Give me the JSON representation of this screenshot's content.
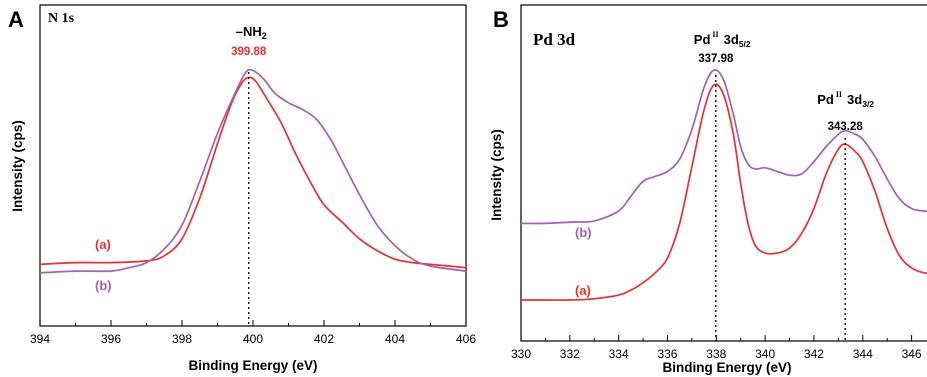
{
  "colors": {
    "series_a": "#e8302f",
    "series_b": "#a55fb4",
    "annotation_red": "#e8302f",
    "axis": "#000000"
  },
  "chart_data": [
    {
      "type": "line",
      "panel": "A",
      "core_level": "N 1s",
      "xlabel": "Binding Energy (eV)",
      "ylabel": "Intensity (cps)",
      "xlim": [
        394,
        406
      ],
      "ylim": [
        0,
        100
      ],
      "x_reversed": false,
      "xticks": [
        394,
        396,
        398,
        400,
        402,
        404,
        406
      ],
      "peak_annotation": {
        "species": "–NH",
        "subscript": "2",
        "value_text": "399.88",
        "x": 399.88
      },
      "series": [
        {
          "label": "(a)",
          "points": [
            [
              394,
              30.5
            ],
            [
              395,
              31
            ],
            [
              396,
              31
            ],
            [
              397,
              31.5
            ],
            [
              397.5,
              33
            ],
            [
              398,
              38
            ],
            [
              398.5,
              50
            ],
            [
              399,
              66
            ],
            [
              399.4,
              78
            ],
            [
              399.7,
              84
            ],
            [
              399.9,
              85.5
            ],
            [
              400.1,
              84
            ],
            [
              400.4,
              79
            ],
            [
              400.8,
              72
            ],
            [
              401.2,
              63
            ],
            [
              401.6,
              55
            ],
            [
              402,
              48
            ],
            [
              402.5,
              43
            ],
            [
              403,
              38
            ],
            [
              403.5,
              34.5
            ],
            [
              404,
              32
            ],
            [
              404.5,
              31
            ],
            [
              405,
              30.5
            ],
            [
              406,
              29.5
            ]
          ]
        },
        {
          "label": "(b)",
          "points": [
            [
              394,
              28
            ],
            [
              395,
              28.5
            ],
            [
              396,
              28.5
            ],
            [
              396.5,
              29.5
            ],
            [
              397,
              31
            ],
            [
              397.5,
              35
            ],
            [
              398,
              42
            ],
            [
              398.5,
              55
            ],
            [
              399,
              69
            ],
            [
              399.5,
              81
            ],
            [
              399.8,
              87
            ],
            [
              400,
              87.5
            ],
            [
              400.3,
              85
            ],
            [
              400.6,
              81
            ],
            [
              401,
              78
            ],
            [
              401.4,
              76
            ],
            [
              401.8,
              73
            ],
            [
              402.2,
              67
            ],
            [
              402.6,
              59
            ],
            [
              403,
              51
            ],
            [
              403.5,
              42
            ],
            [
              404,
              36
            ],
            [
              404.5,
              32
            ],
            [
              405,
              30
            ],
            [
              406,
              28.5
            ]
          ]
        }
      ]
    },
    {
      "type": "line",
      "panel": "B",
      "core_level": "Pd 3d",
      "xlabel": "Binding Energy (eV)",
      "ylabel": "Intensity (cps)",
      "xlim": [
        330,
        347
      ],
      "ylim": [
        0,
        100
      ],
      "x_reversed": false,
      "xticks": [
        330,
        332,
        334,
        336,
        338,
        340,
        342,
        344,
        346
      ],
      "peak_annotations": [
        {
          "species": "Pd",
          "ox_state": "II",
          "orbital": "3d",
          "subscript": "5/2",
          "value_text": "337.98",
          "x": 337.98
        },
        {
          "species": "Pd",
          "ox_state": "II",
          "orbital": "3d",
          "subscript": "3/2",
          "value_text": "343.28",
          "x": 343.28
        }
      ],
      "series": [
        {
          "label": "(b)",
          "points": [
            [
              330,
              42
            ],
            [
              331,
              42
            ],
            [
              332,
              42.5
            ],
            [
              333,
              43
            ],
            [
              334,
              47
            ],
            [
              334.5,
              53
            ],
            [
              335,
              59
            ],
            [
              335.5,
              61
            ],
            [
              336,
              63
            ],
            [
              336.5,
              68
            ],
            [
              337,
              80
            ],
            [
              337.5,
              97
            ],
            [
              337.9,
              104
            ],
            [
              338.3,
              100
            ],
            [
              338.7,
              86
            ],
            [
              339,
              73
            ],
            [
              339.3,
              66
            ],
            [
              339.6,
              64
            ],
            [
              340,
              64.5
            ],
            [
              340.5,
              63
            ],
            [
              341,
              61.5
            ],
            [
              341.5,
              62
            ],
            [
              342,
              67
            ],
            [
              342.5,
              73
            ],
            [
              343,
              78
            ],
            [
              343.3,
              79.5
            ],
            [
              343.7,
              78
            ],
            [
              344,
              76
            ],
            [
              344.5,
              69
            ],
            [
              345,
              60
            ],
            [
              345.5,
              52
            ],
            [
              346,
              48
            ],
            [
              346.5,
              47
            ],
            [
              347,
              46.5
            ]
          ]
        },
        {
          "label": "(a)",
          "points": [
            [
              330,
              11
            ],
            [
              331,
              11
            ],
            [
              332,
              11
            ],
            [
              333,
              11.5
            ],
            [
              334,
              13
            ],
            [
              334.5,
              15
            ],
            [
              335,
              18
            ],
            [
              335.5,
              22
            ],
            [
              336,
              28
            ],
            [
              336.5,
              42
            ],
            [
              337,
              65
            ],
            [
              337.5,
              88
            ],
            [
              337.9,
              98
            ],
            [
              338.3,
              94
            ],
            [
              338.7,
              78
            ],
            [
              339,
              58
            ],
            [
              339.3,
              42
            ],
            [
              339.6,
              33
            ],
            [
              340,
              30
            ],
            [
              340.5,
              30
            ],
            [
              341,
              32
            ],
            [
              341.5,
              38
            ],
            [
              342,
              48
            ],
            [
              342.5,
              62
            ],
            [
              343,
              72
            ],
            [
              343.3,
              74
            ],
            [
              343.7,
              71
            ],
            [
              344,
              67
            ],
            [
              344.5,
              55
            ],
            [
              345,
              40
            ],
            [
              345.5,
              29
            ],
            [
              346,
              24
            ],
            [
              346.5,
              22
            ],
            [
              347,
              21.5
            ]
          ]
        }
      ]
    }
  ]
}
